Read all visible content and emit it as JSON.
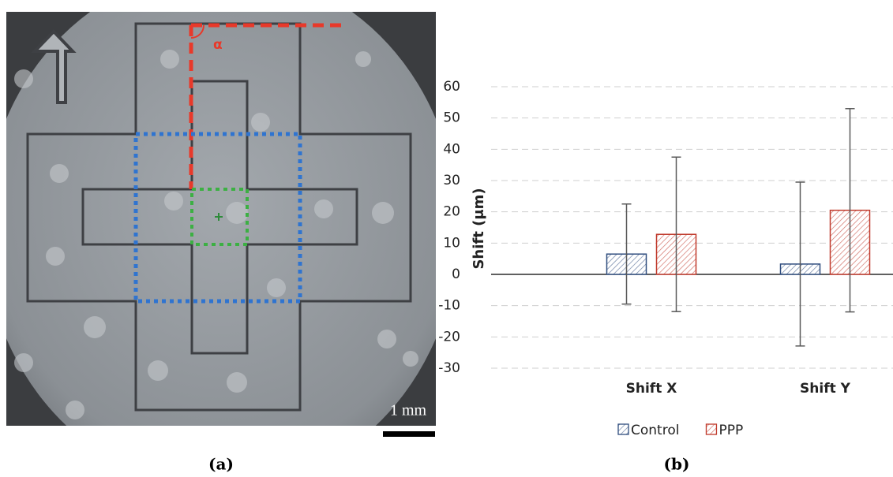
{
  "photo": {
    "angle_label": "α",
    "scale_label": "1 mm"
  },
  "captions": [
    "(a)",
    "(b)"
  ],
  "chart_data": {
    "type": "bar",
    "ylabel": "Shift (μm)",
    "categories": [
      "Shift X",
      "Shift Y"
    ],
    "series": [
      {
        "name": "Control",
        "color": "#2f4d7e",
        "values": [
          6.5,
          3.3
        ],
        "errors": [
          16,
          26.2
        ]
      },
      {
        "name": "PPP",
        "color": "#c0392b",
        "values": [
          12.8,
          20.5
        ],
        "errors": [
          24.7,
          32.5
        ]
      }
    ],
    "ylim": [
      -30,
      60
    ],
    "yticks": [
      -30,
      -20,
      -10,
      0,
      10,
      20,
      30,
      40,
      50,
      60
    ],
    "grid": true,
    "legend": "bottom"
  }
}
